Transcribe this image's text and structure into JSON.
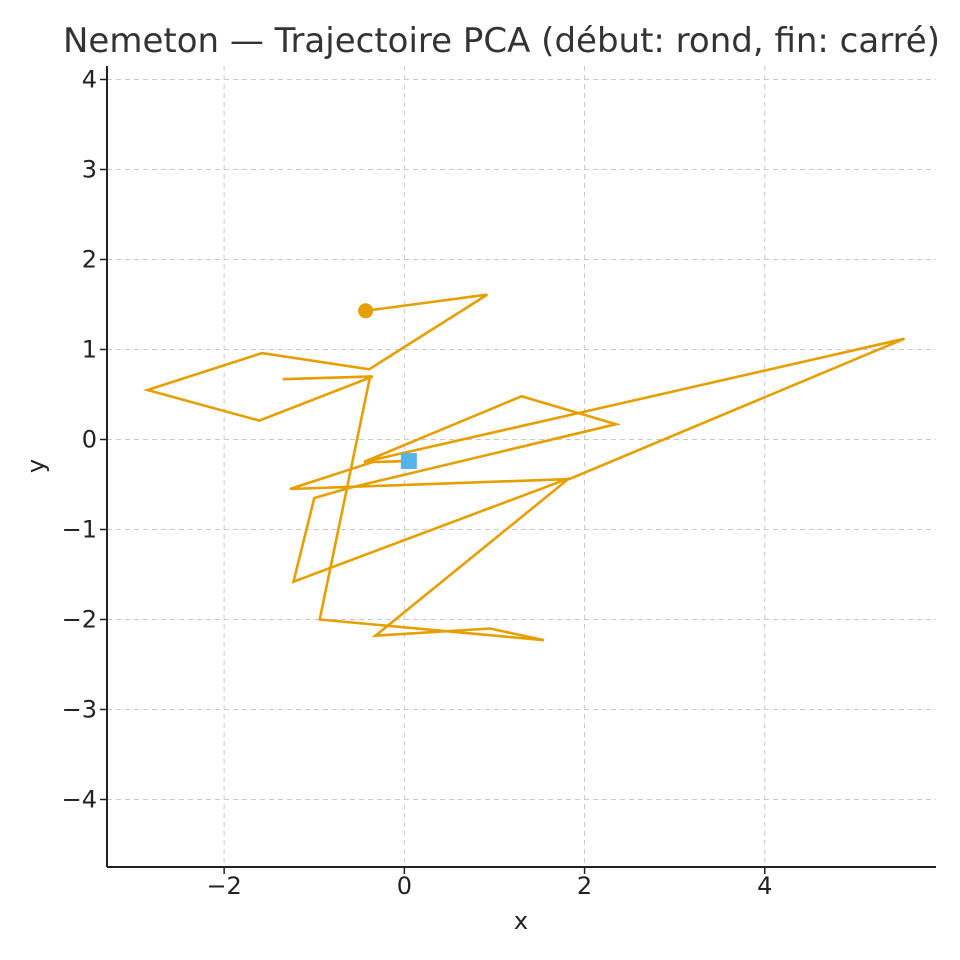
{
  "chart_data": {
    "type": "line",
    "title": "Nemeton — Trajectoire PCA (début: rond, fin: carré)",
    "xlabel": "x",
    "ylabel": "y",
    "xlim": [
      -3.3,
      5.9
    ],
    "ylim": [
      -4.75,
      4.15
    ],
    "xticks": [
      -2,
      0,
      2,
      4
    ],
    "yticks": [
      -4,
      -3,
      -2,
      -1,
      0,
      1,
      2,
      3,
      4
    ],
    "grid": true,
    "series": [
      {
        "color": "#E69F00",
        "x": [
          -0.43,
          0.92,
          -0.39,
          -1.58,
          -2.85,
          -1.61,
          -0.35,
          -1.35,
          -0.38,
          -0.94,
          1.55,
          0.95,
          -0.32,
          1.83,
          -1.23,
          -1.0,
          -0.62,
          2.35,
          1.3,
          -0.45,
          5.55,
          1.83,
          -1.27,
          -0.35,
          0.05
        ],
        "y": [
          1.43,
          1.61,
          0.78,
          0.96,
          0.55,
          0.21,
          0.7,
          0.67,
          0.7,
          -2.0,
          -2.23,
          -2.1,
          -2.18,
          -0.43,
          -1.58,
          -0.65,
          -0.54,
          0.17,
          0.48,
          -0.25,
          1.12,
          -0.44,
          -0.55,
          -0.25,
          -0.24
        ]
      }
    ],
    "start_marker": {
      "shape": "circle",
      "color": "#E69F00"
    },
    "end_marker": {
      "shape": "square",
      "color": "#56B4E9"
    }
  }
}
